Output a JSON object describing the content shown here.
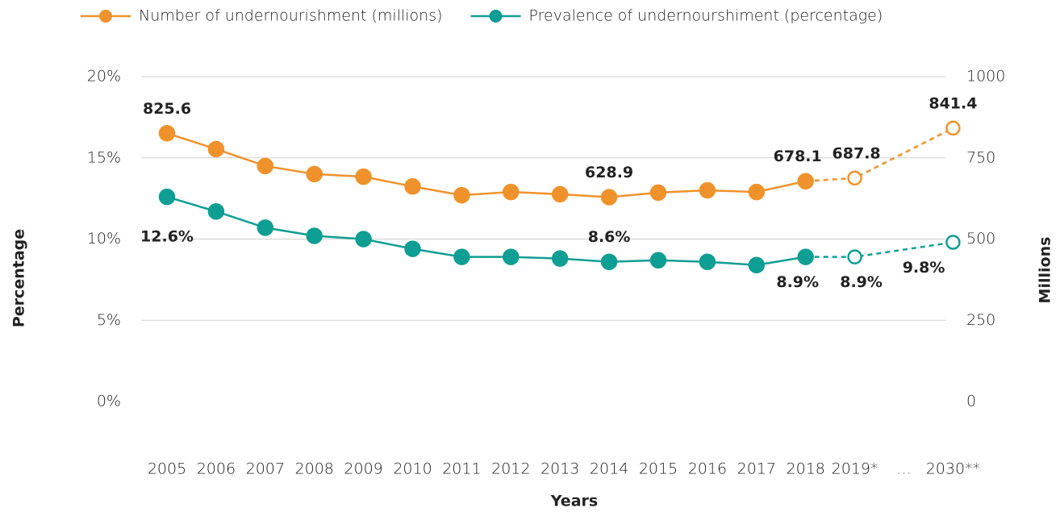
{
  "chart_data": {
    "type": "line",
    "categories": [
      "2005",
      "2006",
      "2007",
      "2008",
      "2009",
      "2010",
      "2011",
      "2012",
      "2013",
      "2014",
      "2015",
      "2016",
      "2017",
      "2018",
      "2019*",
      "2030**"
    ],
    "x_gap_label": "…",
    "series": [
      {
        "name": "Number of undernourishment (millions)",
        "color": "#f0922b",
        "axis": "y2",
        "values": [
          825.6,
          777,
          725,
          700,
          692,
          662,
          635,
          645,
          638,
          628.9,
          643,
          650,
          645,
          678.1,
          687.8,
          841.4
        ],
        "value_labels": [
          "825.6",
          null,
          null,
          null,
          null,
          null,
          null,
          null,
          null,
          "628.9",
          null,
          null,
          null,
          "678.1",
          "687.8",
          "841.4"
        ]
      },
      {
        "name": "Prevalence of undernourshiment (percentage)",
        "color": "#0f9e94",
        "values": [
          12.6,
          11.7,
          10.7,
          10.2,
          10.0,
          9.4,
          8.9,
          8.9,
          8.8,
          8.6,
          8.7,
          8.6,
          8.4,
          8.9,
          8.9,
          9.8
        ],
        "value_labels": [
          "12.6%",
          null,
          null,
          null,
          null,
          null,
          null,
          null,
          null,
          "8.6%",
          null,
          null,
          null,
          "8.9%",
          "8.9%",
          "9.8%"
        ]
      }
    ],
    "ylim": [
      0,
      20
    ],
    "yticks": [
      {
        "value": 0,
        "label": "0%"
      },
      {
        "value": 5,
        "label": "5%"
      },
      {
        "value": 10,
        "label": "10%"
      },
      {
        "value": 15,
        "label": "15%"
      },
      {
        "value": 20,
        "label": "20%"
      }
    ],
    "y2lim": [
      0,
      1000
    ],
    "y2ticks": [
      0,
      250,
      500,
      750,
      1000
    ],
    "ylabel": "Percentage",
    "y2label": "Millions",
    "xlabel": "Years",
    "grid": true,
    "legend": "top"
  }
}
